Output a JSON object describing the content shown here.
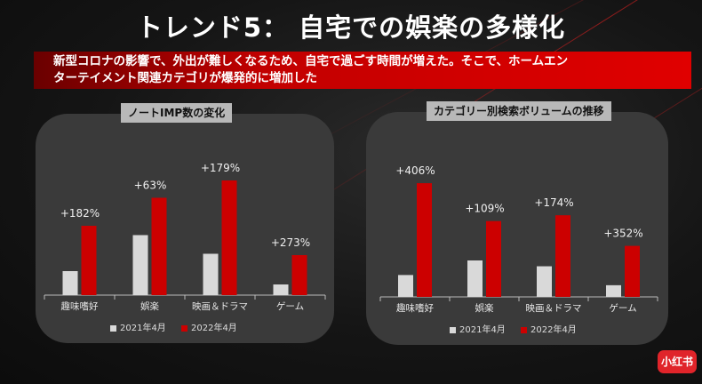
{
  "title": "トレンド5： 自宅での娯楽の多様化",
  "banner": {
    "line1": "新型コロナの影響で、外出が難しくなるため、自宅で過ごす時間が増えた。そこで、ホームエン",
    "line2": "ターテイメント関連カテゴリが爆発的に増加した"
  },
  "logo_text": "小红书",
  "colors": {
    "series_2021": "#d9d9d9",
    "series_2022": "#cc0000",
    "banner": "#e00000"
  },
  "chart_data": [
    {
      "type": "bar",
      "title": "ノートIMP数の変化",
      "categories": [
        "趣味嗜好",
        "娯楽",
        "映画＆ドラマ",
        "ゲーム"
      ],
      "series": [
        {
          "name": "2021年4月",
          "values": [
            18,
            45,
            31,
            8
          ]
        },
        {
          "name": "2022年4月",
          "values": [
            52,
            73,
            86,
            30
          ]
        }
      ],
      "data_labels": [
        "+182%",
        "+63%",
        "+179%",
        "+273%"
      ],
      "ylim": [
        0,
        100
      ],
      "legend": "bottom"
    },
    {
      "type": "bar",
      "title": "カテゴリー別検索ボリュームの推移",
      "categories": [
        "趣味嗜好",
        "娯楽",
        "映画＆ドラマ",
        "ゲーム"
      ],
      "series": [
        {
          "name": "2021年4月",
          "values": [
            15,
            25,
            21,
            8
          ]
        },
        {
          "name": "2022年4月",
          "values": [
            78,
            52,
            56,
            35
          ]
        }
      ],
      "data_labels": [
        "+406%",
        "+109%",
        "+174%",
        "+352%"
      ],
      "ylim": [
        0,
        100
      ],
      "legend": "bottom"
    }
  ]
}
